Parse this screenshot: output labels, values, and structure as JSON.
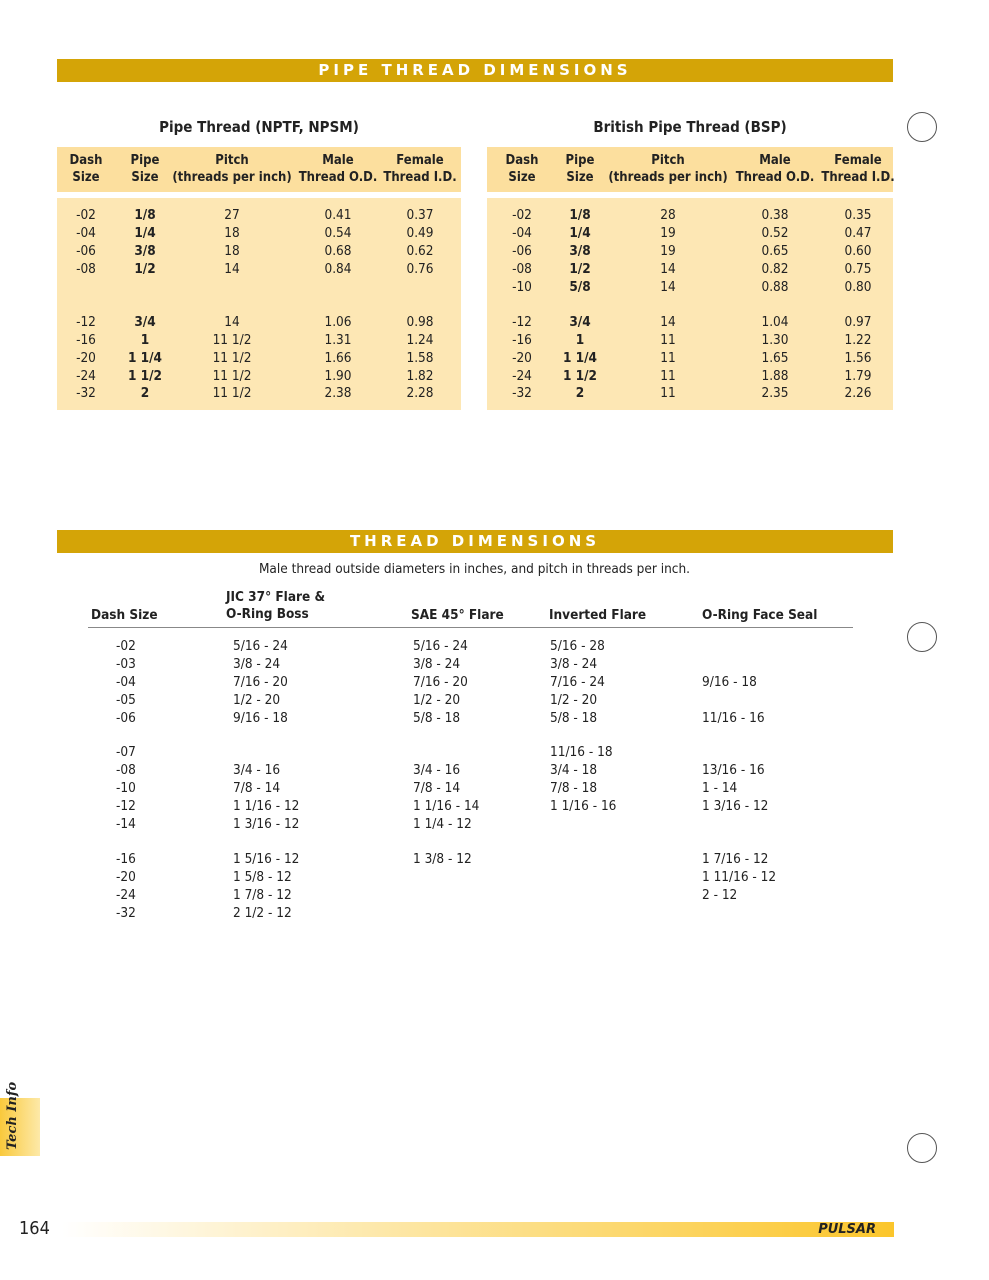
{
  "pipe_section": {
    "title": "PIPE THREAD DIMENSIONS"
  },
  "nptf": {
    "title": "Pipe Thread (NPTF, NPSM)",
    "headers": [
      "Dash\nSize",
      "Pipe\nSize",
      "Pitch\n(threads per inch)",
      "Male\nThread O.D.",
      "Female\nThread I.D."
    ],
    "rows": [
      [
        "-02",
        "1/8",
        "27",
        "0.41",
        "0.37"
      ],
      [
        "-04",
        "1/4",
        "18",
        "0.54",
        "0.49"
      ],
      [
        "-06",
        "3/8",
        "18",
        "0.68",
        "0.62"
      ],
      [
        "-08",
        "1/2",
        "14",
        "0.84",
        "0.76"
      ],
      null,
      [
        "-12",
        "3/4",
        "14",
        "1.06",
        "0.98"
      ],
      [
        "-16",
        "1",
        "11 1/2",
        "1.31",
        "1.24"
      ],
      [
        "-20",
        "1 1/4",
        "11 1/2",
        "1.66",
        "1.58"
      ],
      [
        "-24",
        "1 1/2",
        "11 1/2",
        "1.90",
        "1.82"
      ],
      [
        "-32",
        "2",
        "11 1/2",
        "2.38",
        "2.28"
      ]
    ]
  },
  "bsp": {
    "title": "British Pipe Thread (BSP)",
    "headers": [
      "Dash\nSize",
      "Pipe\nSize",
      "Pitch\n(threads per inch)",
      "Male\nThread O.D.",
      "Female\nThread I.D."
    ],
    "rows": [
      [
        "-02",
        "1/8",
        "28",
        "0.38",
        "0.35"
      ],
      [
        "-04",
        "1/4",
        "19",
        "0.52",
        "0.47"
      ],
      [
        "-06",
        "3/8",
        "19",
        "0.65",
        "0.60"
      ],
      [
        "-08",
        "1/2",
        "14",
        "0.82",
        "0.75"
      ],
      [
        "-10",
        "5/8",
        "14",
        "0.88",
        "0.80"
      ],
      [
        "-12",
        "3/4",
        "14",
        "1.04",
        "0.97"
      ],
      [
        "-16",
        "1",
        "11",
        "1.30",
        "1.22"
      ],
      [
        "-20",
        "1 1/4",
        "11",
        "1.65",
        "1.56"
      ],
      [
        "-24",
        "1 1/2",
        "11",
        "1.88",
        "1.79"
      ],
      [
        "-32",
        "2",
        "11",
        "2.35",
        "2.26"
      ]
    ]
  },
  "thread_section": {
    "title": "THREAD DIMENSIONS",
    "subtitle": "Male thread outside diameters in inches, and pitch in threads per inch.",
    "headers": [
      "Dash Size",
      "JIC 37° Flare &\nO-Ring Boss",
      "SAE 45° Flare",
      "Inverted Flare",
      "O-Ring Face Seal"
    ],
    "rows": [
      [
        "-02",
        "5/16 - 24",
        "5/16 - 24",
        "5/16 - 28",
        ""
      ],
      [
        "-03",
        "3/8 - 24",
        "3/8 - 24",
        "3/8 - 24",
        ""
      ],
      [
        "-04",
        "7/16 - 20",
        "7/16 - 20",
        "7/16 - 24",
        "9/16 - 18"
      ],
      [
        "-05",
        "1/2 - 20",
        "1/2 - 20",
        "1/2 - 20",
        ""
      ],
      [
        "-06",
        "9/16 - 18",
        "5/8 - 18",
        "5/8 - 18",
        "11/16 - 16"
      ],
      [
        "-07",
        "",
        "",
        "11/16 - 18",
        ""
      ],
      [
        "-08",
        "3/4 - 16",
        "3/4 - 16",
        "3/4 - 18",
        "13/16 - 16"
      ],
      [
        "-10",
        "7/8 - 14",
        "7/8 - 14",
        "7/8 - 18",
        "1 - 14"
      ],
      [
        "-12",
        "1 1/16 - 12",
        "1 1/16 - 14",
        "1 1/16 - 16",
        "1 3/16 - 12"
      ],
      [
        "-14",
        "1 3/16 - 12",
        "1 1/4 - 12",
        "",
        ""
      ],
      [
        "-16",
        "1 5/16 - 12",
        "1 3/8 - 12",
        "",
        "1 7/16 - 12"
      ],
      [
        "-20",
        "1 5/8 - 12",
        "",
        "",
        "1 11/16 - 12"
      ],
      [
        "-24",
        "1 7/8 - 12",
        "",
        "",
        "2 - 12"
      ],
      [
        "-32",
        "2 1/2 - 12",
        "",
        "",
        ""
      ]
    ]
  },
  "side_tab": "Tech Info",
  "page_number": "164",
  "brand": "PULSAR",
  "colors": {
    "accent": "#d4a407",
    "table_bg": "#fde7b4"
  }
}
